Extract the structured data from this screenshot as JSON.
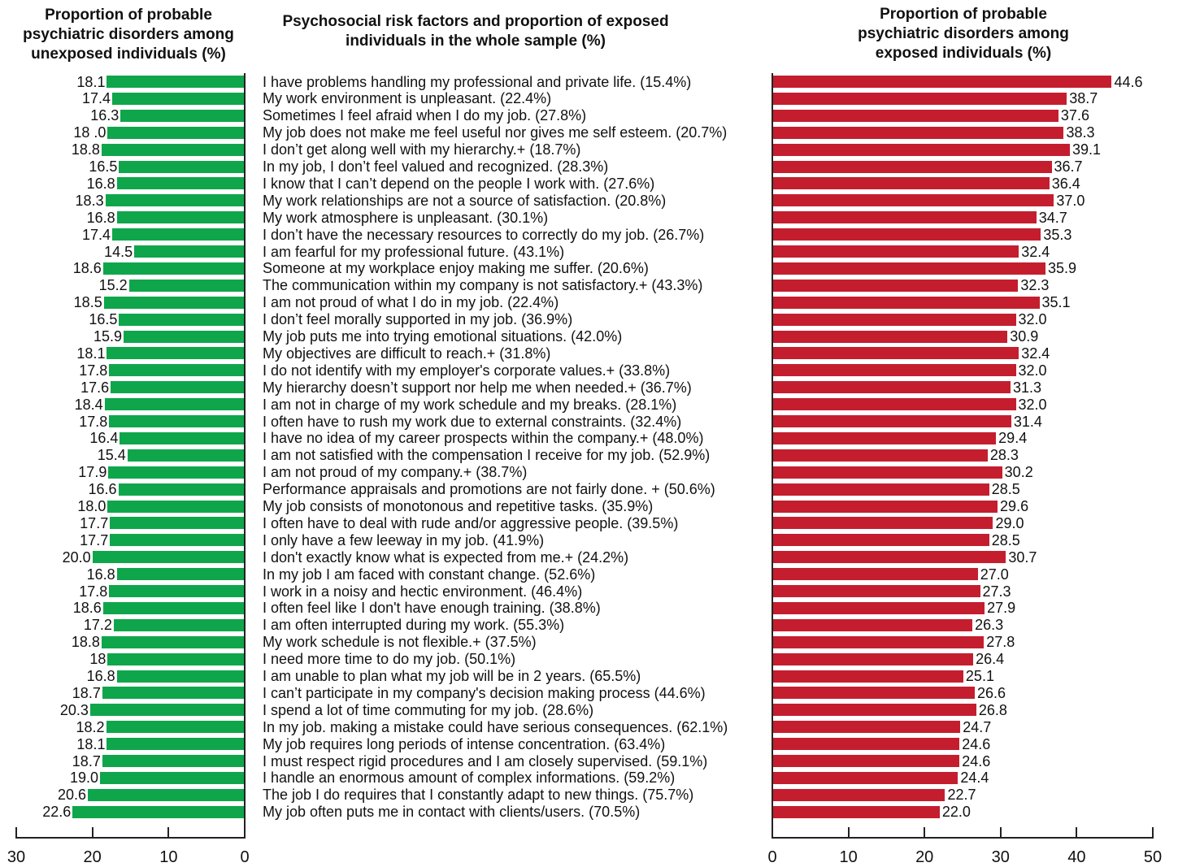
{
  "headers": {
    "left": "Proportion of probable psychiatric disorders among unexposed individuals (%)",
    "middle": "Psychosocial risk factors and proportion of exposed individuals in the whole sample (%)",
    "right": "Proportion of probable psychiatric disorders among exposed individuals (%)"
  },
  "chart_data": {
    "type": "bar",
    "orientation": "horizontal",
    "categories": [
      "I have problems handling my professional and private life. (15.4%)",
      "My work environment is unpleasant. (22.4%)",
      "Sometimes I feel afraid when I do my job. (27.8%)",
      "My job does not make me feel useful nor gives me self esteem. (20.7%)",
      "I don’t get along well with my hierarchy.+ (18.7%)",
      "In my job, I don’t feel valued and recognized. (28.3%)",
      "I know that I can’t depend on the people I work with. (27.6%)",
      "My work relationships are not a source of satisfaction. (20.8%)",
      "My work atmosphere is unpleasant. (30.1%)",
      "I don’t have the necessary resources to correctly do my job. (26.7%)",
      "I am fearful for my professional future. (43.1%)",
      "Someone at my workplace enjoy making me suffer. (20.6%)",
      "The communication within my company is not satisfactory.+ (43.3%)",
      "I am not proud of what I do in my job. (22.4%)",
      "I don’t feel morally supported in my job.  (36.9%)",
      "My job puts me into trying emotional situations. (42.0%)",
      "My objectives are difficult to reach.+ (31.8%)",
      "I do not identify with my employer's corporate values.+ (33.8%)",
      "My hierarchy doesn’t support nor help me when needed.+ (36.7%)",
      "I am not  in charge of my work schedule and my breaks. (28.1%)",
      "I often have to rush my work due to external constraints. (32.4%)",
      "I  have no idea of my career prospects within the company.+ (48.0%)",
      "I am not satisfied with the compensation I receive for my job.  (52.9%)",
      "I am not proud of my company.+ (38.7%)",
      "Performance appraisals and promotions are not fairly done. + (50.6%)",
      "My job consists of monotonous and repetitive tasks. (35.9%)",
      "I often have to deal with rude and/or aggressive people. (39.5%)",
      "I  only have a few leeway in my job. (41.9%)",
      "I don't exactly know what is expected from me.+ (24.2%)",
      "In my job I am faced with constant change. (52.6%)",
      "I work in a noisy and hectic environment. (46.4%)",
      "I often feel like I don't have enough training. (38.8%)",
      "I am often interrupted during my work. (55.3%)",
      "My work schedule is not flexible.+ (37.5%)",
      "I need more time to do my job. (50.1%)",
      "I am unable to plan what my job will be in 2 years. (65.5%)",
      "I can’t participate in my company's decision making process (44.6%)",
      "I spend a lot of time commuting for my job. (28.6%)",
      "In my job. making a mistake could have serious consequences. (62.1%)",
      "My job requires long periods of intense concentration. (63.4%)",
      "I must respect rigid procedures and I am closely supervised. (59.1%)",
      "I handle an enormous amount of complex informations. (59.2%)",
      "The job I do requires that I constantly adapt to new things. (75.7%)",
      "My job often puts me in contact with clients/users. (70.5%)"
    ],
    "series": [
      {
        "name": "unexposed",
        "color": "#0fa64b",
        "labels": [
          "18.1",
          "17.4",
          "16.3",
          "18 .0",
          "18.8",
          "16.5",
          "16.8",
          "18.3",
          "16.8",
          "17.4",
          "14.5",
          "18.6",
          "15.2",
          "18.5",
          "16.5",
          "15.9",
          "18.1",
          "17.8",
          "17.6",
          "18.4",
          "17.8",
          "16.4",
          "15.4",
          "17.9",
          "16.6",
          "18.0",
          "17.7",
          "17.7",
          "20.0",
          "16.8",
          "17.8",
          "18.6",
          "17.2",
          "18.8",
          "18",
          "16.8",
          "18.7",
          "20.3",
          "18.2",
          "18.1",
          "18.7",
          "19.0",
          "20.6",
          "22.6"
        ],
        "values": [
          18.1,
          17.4,
          16.3,
          18.0,
          18.8,
          16.5,
          16.8,
          18.3,
          16.8,
          17.4,
          14.5,
          18.6,
          15.2,
          18.5,
          16.5,
          15.9,
          18.1,
          17.8,
          17.6,
          18.4,
          17.8,
          16.4,
          15.4,
          17.9,
          16.6,
          18.0,
          17.7,
          17.7,
          20.0,
          16.8,
          17.8,
          18.6,
          17.2,
          18.8,
          18,
          16.8,
          18.7,
          20.3,
          18.2,
          18.1,
          18.7,
          19.0,
          20.6,
          22.6
        ]
      },
      {
        "name": "exposed",
        "color": "#c41e2e",
        "labels": [
          "44.6",
          "38.7",
          "37.6",
          "38.3",
          "39.1",
          "36.7",
          "36.4",
          "37.0",
          "34.7",
          "35.3",
          "32.4",
          "35.9",
          "32.3",
          "35.1",
          "32.0",
          "30.9",
          "32.4",
          "32.0",
          "31.3",
          "32.0",
          "31.4",
          "29.4",
          "28.3",
          "30.2",
          "28.5",
          "29.6",
          "29.0",
          "28.5",
          "30.7",
          "27.0",
          "27.3",
          "27.9",
          "26.3",
          "27.8",
          "26.4",
          "25.1",
          "26.6",
          "26.8",
          "24.7",
          "24.6",
          "24.6",
          "24.4",
          "22.7",
          "22.0"
        ],
        "values": [
          44.6,
          38.7,
          37.6,
          38.3,
          39.1,
          36.7,
          36.4,
          37.0,
          34.7,
          35.3,
          32.4,
          35.9,
          32.3,
          35.1,
          32.0,
          30.9,
          32.4,
          32.0,
          31.3,
          32.0,
          31.4,
          29.4,
          28.3,
          30.2,
          28.5,
          29.6,
          29.0,
          28.5,
          30.7,
          27.0,
          27.3,
          27.9,
          26.3,
          27.8,
          26.4,
          25.1,
          26.6,
          26.8,
          24.7,
          24.6,
          24.6,
          24.4,
          22.7,
          22.0
        ]
      }
    ],
    "left_axis": {
      "range": [
        30,
        0
      ],
      "ticks": [
        "30",
        "20",
        "10",
        "0"
      ]
    },
    "right_axis": {
      "range": [
        0,
        50
      ],
      "ticks": [
        "0",
        "10",
        "20",
        "30",
        "40",
        "50"
      ]
    }
  }
}
